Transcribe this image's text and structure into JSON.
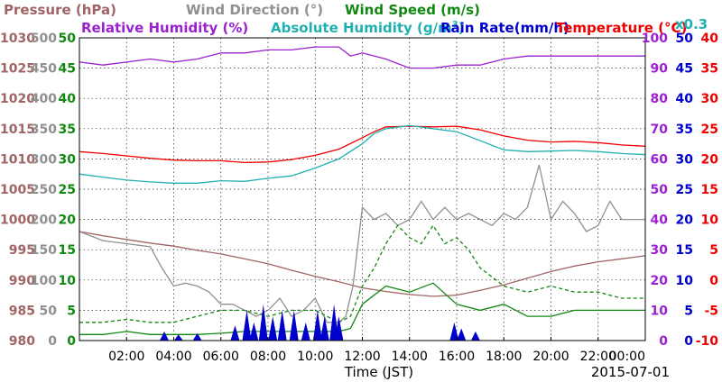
{
  "chart_data": {
    "type": "line",
    "legend": {
      "row1": [
        {
          "label": "Pressure (hPa)",
          "color": "#a06464"
        },
        {
          "label": "Wind Direction (°)",
          "color": "#909090"
        },
        {
          "label": "Wind Speed (m/s)",
          "color": "#118811"
        }
      ],
      "row2": [
        {
          "label": "Relative Humidity (%)",
          "color": "#9b20d0"
        },
        {
          "label": "Absolute Humidity (g/m",
          "sup": "3",
          "close": ")",
          "color": "#20b0b0"
        },
        {
          "label": "Rain Rate(mm/h)",
          "color": "#0000cc"
        },
        {
          "label": "Temperature (°C)",
          "color": "#ee0000"
        }
      ],
      "ah_scale": "x0.3"
    },
    "axes_left": [
      {
        "name": "pressure",
        "color": "#a06464",
        "ticks": [
          "980",
          "985",
          "990",
          "995",
          "1000",
          "1005",
          "1010",
          "1015",
          "1020",
          "1025",
          "1030"
        ]
      },
      {
        "name": "wind-direction",
        "color": "#909090",
        "ticks": [
          "0",
          "50",
          "100",
          "150",
          "200",
          "250",
          "300",
          "350",
          "400",
          "450",
          "500"
        ]
      },
      {
        "name": "wind-speed",
        "color": "#118811",
        "ticks": [
          "0",
          "5",
          "10",
          "15",
          "20",
          "25",
          "30",
          "35",
          "40",
          "45",
          "50"
        ]
      }
    ],
    "axes_right": [
      {
        "name": "relative-humidity",
        "color": "#9b20d0",
        "ticks": [
          "0",
          "10",
          "20",
          "30",
          "40",
          "50",
          "60",
          "70",
          "80",
          "90",
          "100"
        ]
      },
      {
        "name": "rain-rate",
        "color": "#0000cc",
        "ticks": [
          "0",
          "5",
          "10",
          "15",
          "20",
          "25",
          "30",
          "35",
          "40",
          "45",
          "50"
        ]
      },
      {
        "name": "temperature",
        "color": "#ee0000",
        "ticks": [
          "-10",
          "-5",
          "0",
          "5",
          "10",
          "15",
          "20",
          "25",
          "30",
          "35",
          "40"
        ]
      }
    ],
    "x_ticks": [
      "02:00",
      "04:00",
      "06:00",
      "08:00",
      "10:00",
      "12:00",
      "14:00",
      "16:00",
      "18:00",
      "20:00",
      "22:00",
      "00:00"
    ],
    "xlabel": "Time (JST)",
    "date": "2015-07-01",
    "x_range_hours": [
      0,
      24
    ],
    "grid": true,
    "series": [
      {
        "name": "Relative Humidity (%)",
        "key": "rh",
        "color": "#9b20d0",
        "axis_range": [
          0,
          100
        ],
        "x": [
          0,
          1,
          2,
          3,
          4,
          5,
          6,
          7,
          8,
          9,
          10,
          10.5,
          11,
          11.5,
          12,
          13,
          14,
          15,
          16,
          17,
          18,
          19,
          20,
          21,
          22,
          23,
          24
        ],
        "y": [
          92,
          91,
          92,
          93,
          92,
          93,
          95,
          95,
          96,
          96,
          97,
          97,
          97,
          94,
          95,
          93,
          90,
          90,
          91,
          91,
          93,
          94,
          94,
          94,
          94,
          94,
          94
        ]
      },
      {
        "name": "Temperature (°C)",
        "key": "temp",
        "color": "#ee0000",
        "axis_range": [
          -10,
          40
        ],
        "x": [
          0,
          1,
          2,
          3,
          4,
          5,
          6,
          7,
          8,
          9,
          10,
          11,
          12,
          12.5,
          13,
          14,
          15,
          16,
          17,
          18,
          19,
          20,
          21,
          22,
          23,
          24
        ],
        "y": [
          21.2,
          20.9,
          20.5,
          20.1,
          19.8,
          19.7,
          19.7,
          19.4,
          19.5,
          19.9,
          20.6,
          21.6,
          23.5,
          24.5,
          25.3,
          25.4,
          25.3,
          25.4,
          24.8,
          23.8,
          23.1,
          22.8,
          22.9,
          22.7,
          22.3,
          22.1
        ]
      },
      {
        "name": "Absolute Humidity (g/m3)",
        "key": "ah",
        "color": "#20b0b0",
        "axis_range": [
          0,
          50
        ],
        "x": [
          0,
          1,
          2,
          3,
          4,
          5,
          6,
          7,
          8,
          9,
          10,
          11,
          12,
          12.5,
          13,
          14,
          15,
          16,
          17,
          18,
          19,
          20,
          21,
          22,
          23,
          24
        ],
        "y": [
          27.5,
          27,
          26.5,
          26.2,
          26,
          26,
          26.4,
          26.3,
          26.8,
          27.2,
          28.5,
          30,
          32.5,
          34.2,
          35,
          35.5,
          35,
          34.5,
          33,
          31.5,
          31.2,
          31.3,
          31.4,
          31.2,
          30.9,
          30.7
        ]
      },
      {
        "name": "Pressure (hPa)",
        "key": "pressure",
        "color": "#a06464",
        "axis_range": [
          980,
          1030
        ],
        "x": [
          0,
          1,
          2,
          3,
          4,
          5,
          6,
          7,
          8,
          9,
          10,
          11,
          12,
          13,
          14,
          15,
          16,
          17,
          18,
          19,
          20,
          21,
          22,
          23,
          24
        ],
        "y": [
          998,
          997.3,
          996.7,
          996.1,
          995.6,
          994.9,
          994.3,
          993.5,
          992.7,
          991.6,
          990.6,
          989.7,
          988.7,
          988.1,
          987.6,
          987.3,
          987.5,
          988.3,
          989.2,
          990.3,
          991.4,
          992.3,
          993,
          993.5,
          994
        ]
      },
      {
        "name": "Wind Direction (°)",
        "key": "wd",
        "color": "#909090",
        "axis_range": [
          0,
          500
        ],
        "x": [
          0,
          1,
          2,
          3,
          3.5,
          4,
          4.5,
          5,
          5.5,
          6,
          6.5,
          7,
          7.5,
          8,
          8.5,
          9,
          9.5,
          10,
          10.5,
          11,
          11.3,
          11.6,
          12,
          12.5,
          13,
          13.5,
          14,
          14.5,
          15,
          15.5,
          16,
          16.5,
          17,
          17.5,
          18,
          18.5,
          19,
          19.5,
          20,
          20.5,
          21,
          21.5,
          22,
          22.5,
          23,
          23.5,
          24
        ],
        "y": [
          180,
          165,
          160,
          155,
          120,
          90,
          95,
          90,
          80,
          60,
          60,
          50,
          40,
          50,
          70,
          40,
          50,
          70,
          30,
          30,
          40,
          90,
          220,
          200,
          210,
          190,
          200,
          230,
          200,
          220,
          200,
          210,
          200,
          190,
          210,
          200,
          220,
          290,
          200,
          230,
          210,
          180,
          190,
          230,
          200,
          200,
          200
        ]
      },
      {
        "name": "Wind Speed (m/s)",
        "key": "ws",
        "color": "#118811",
        "axis_range": [
          0,
          50
        ],
        "x": [
          0,
          1,
          2,
          3,
          4,
          5,
          6,
          7,
          8,
          9,
          10,
          11,
          11.5,
          12,
          13,
          14,
          15,
          16,
          17,
          18,
          19,
          20,
          21,
          22,
          23,
          24
        ],
        "y": [
          1,
          1,
          1.5,
          1,
          1,
          1,
          1.2,
          1.5,
          1.5,
          1.5,
          1.5,
          1.5,
          2,
          6,
          9,
          8,
          9.5,
          6,
          5,
          6,
          4,
          4,
          5,
          5,
          5,
          5
        ]
      },
      {
        "name": "Wind Speed gust (m/s)",
        "key": "wsg",
        "color": "#118811",
        "dashed": true,
        "axis_range": [
          0,
          50
        ],
        "x": [
          0,
          1,
          2,
          3,
          4,
          5,
          6,
          7,
          8,
          9,
          10,
          11,
          11.5,
          12,
          12.5,
          13,
          13.5,
          14,
          14.5,
          15,
          15.5,
          16,
          16.5,
          17,
          18,
          19,
          20,
          21,
          22,
          23,
          24
        ],
        "y": [
          3,
          3,
          3.5,
          3,
          3,
          4,
          5,
          5,
          4,
          5,
          5,
          3,
          4,
          9,
          12,
          16,
          19,
          17,
          16,
          19,
          16,
          17,
          15,
          12,
          9,
          8,
          9,
          8,
          8,
          7,
          7
        ]
      },
      {
        "name": "Rain Rate(mm/h)",
        "key": "rain",
        "color": "#0000cc",
        "axis_range": [
          0,
          50
        ],
        "bars": [
          [
            3.6,
            1.5
          ],
          [
            4.2,
            1
          ],
          [
            5.0,
            1.2
          ],
          [
            6.6,
            2.5
          ],
          [
            7.1,
            5
          ],
          [
            7.4,
            3
          ],
          [
            7.8,
            6
          ],
          [
            8.2,
            4
          ],
          [
            8.6,
            5
          ],
          [
            9.1,
            5
          ],
          [
            9.6,
            3
          ],
          [
            10.1,
            5
          ],
          [
            10.4,
            4
          ],
          [
            10.8,
            6
          ],
          [
            11.0,
            4
          ],
          [
            15.9,
            3
          ],
          [
            16.2,
            2
          ],
          [
            16.8,
            1.5
          ]
        ]
      }
    ]
  }
}
